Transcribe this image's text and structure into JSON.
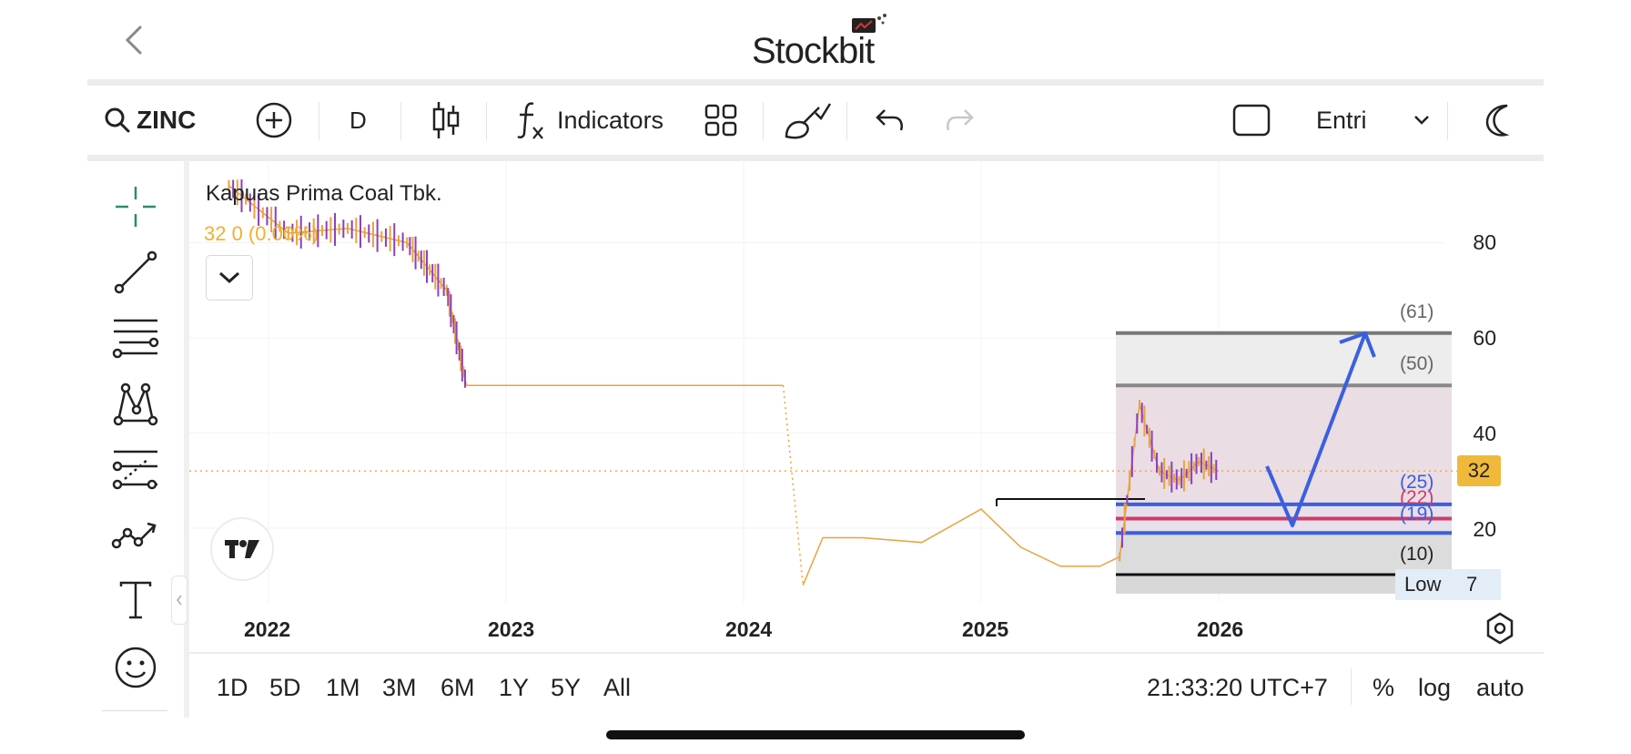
{
  "header": {
    "brand": "Stockbit",
    "back_icon": "chevron-left-icon"
  },
  "toolbar": {
    "symbol": "ZINC",
    "interval": "D",
    "indicators_label": "Indicators",
    "layout_label": "Entri"
  },
  "sidebar": {
    "tools": [
      "crosshair-icon",
      "trend-line-icon",
      "fib-retracement-icon",
      "pattern-icon",
      "forecast-icon",
      "path-icon",
      "text-icon",
      "emoji-icon"
    ]
  },
  "chart": {
    "title": "Kapuas Prima Coal Tbk.",
    "quote": "32  0 (0.00%)",
    "last_price": "32",
    "low_label": "Low",
    "low_value": "7",
    "y_ticks": [
      "80",
      "60",
      "40",
      "20"
    ],
    "x_labels": [
      "2022",
      "2023",
      "2024",
      "2025",
      "2026"
    ],
    "fib_labels": {
      "f61": "(61)",
      "f50": "(50)",
      "f25": "(25)",
      "f22": "(22)",
      "f19": "(19)",
      "f10": "(10)"
    },
    "colors": {
      "accent": "#f0a030",
      "up": "#e8a33c",
      "down": "#8b3fbf",
      "fib_blue": "#3a5fe0",
      "fib_red": "#d23a6a",
      "arrow": "#3a5fe0"
    }
  },
  "chart_data": {
    "type": "line",
    "x_axis_labels": [
      "2022",
      "2023",
      "2024",
      "2025",
      "2026"
    ],
    "y_axis_ticks": [
      80,
      60,
      40,
      20
    ],
    "last_price": 32,
    "change": 0,
    "change_pct": "0.00%",
    "low": 7,
    "series": [
      {
        "x": [
          "2021-11",
          "2022-02",
          "2022-05",
          "2022-08",
          "2022-10",
          "2022-11",
          "2024-03",
          "2024-04",
          "2024-05",
          "2024-07",
          "2024-10",
          "2025-01",
          "2025-03",
          "2025-05",
          "2025-07",
          "2025-08",
          "2025-09",
          "2025-10",
          "2025-11",
          "2025-12",
          "2026-01"
        ],
        "y": [
          92,
          82,
          83,
          80,
          70,
          50,
          50,
          8,
          18,
          18,
          17,
          24,
          16,
          12,
          12,
          14,
          46,
          32,
          30,
          34,
          32
        ]
      }
    ],
    "fib_levels": [
      61,
      50,
      25,
      22,
      19,
      10
    ]
  },
  "bottom": {
    "ranges": [
      "1D",
      "5D",
      "1M",
      "3M",
      "6M",
      "1Y",
      "5Y",
      "All"
    ],
    "time": "21:33:20 UTC+7",
    "percent": "%",
    "log": "log",
    "auto": "auto"
  }
}
